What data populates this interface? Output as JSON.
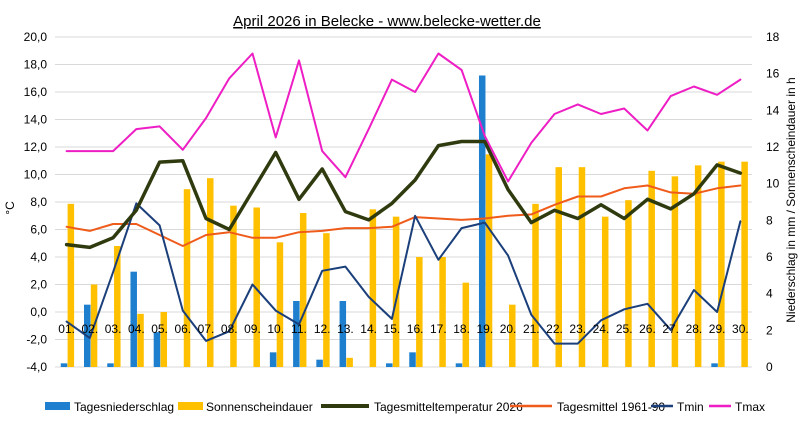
{
  "chart_data": {
    "type": "bar+line",
    "title": "April 2026 in Belecke - www.belecke-wetter.de",
    "ylabel_left": "°C",
    "ylabel_right": "Niederschlag in mm / Sonnenscheindauer in h",
    "ylim_left": [
      -4,
      20
    ],
    "ylim_right": [
      0,
      18
    ],
    "yticks_left": [
      "-4,0",
      "-2,0",
      "0,0",
      "2,0",
      "4,0",
      "6,0",
      "8,0",
      "10,0",
      "12,0",
      "14,0",
      "16,0",
      "18,0",
      "20,0"
    ],
    "yticks_right": [
      "0",
      "2",
      "4",
      "6",
      "8",
      "10",
      "12",
      "14",
      "16",
      "18"
    ],
    "categories": [
      "01.",
      "02.",
      "03.",
      "04.",
      "05.",
      "06.",
      "07.",
      "08.",
      "09.",
      "10.",
      "11.",
      "12.",
      "13.",
      "14.",
      "15.",
      "16.",
      "17.",
      "18.",
      "19.",
      "20.",
      "21.",
      "22.",
      "23.",
      "24.",
      "25.",
      "26.",
      "27.",
      "28.",
      "29.",
      "30."
    ],
    "series": [
      {
        "name": "Tagesniederschlag",
        "kind": "bar",
        "axis": "right",
        "color": "#1f7fcf",
        "values": [
          0.2,
          3.4,
          0.2,
          5.2,
          1.9,
          0,
          0,
          0,
          0,
          0.8,
          3.6,
          0.4,
          3.6,
          0,
          0.2,
          0.8,
          0,
          0.2,
          15.9,
          0,
          0,
          0,
          0,
          0,
          0,
          0,
          0,
          0,
          0.2,
          0
        ]
      },
      {
        "name": "Sonnenscheindauer",
        "kind": "bar",
        "axis": "right",
        "color": "#ffc000",
        "values": [
          8.9,
          4.5,
          6.6,
          2.9,
          3.0,
          9.7,
          10.3,
          8.8,
          8.7,
          6.8,
          8.4,
          7.3,
          0.5,
          8.6,
          8.2,
          6.0,
          6.0,
          4.6,
          11.6,
          3.4,
          8.9,
          10.9,
          10.9,
          8.2,
          9.1,
          10.7,
          10.4,
          11.0,
          11.2,
          11.2
        ]
      },
      {
        "name": "Tagesmitteltemperatur 2026",
        "kind": "line",
        "axis": "left",
        "color": "#2f3b0f",
        "values": [
          4.9,
          4.7,
          5.4,
          7.4,
          10.9,
          11.0,
          6.8,
          6.0,
          8.8,
          11.6,
          8.2,
          10.4,
          7.3,
          6.7,
          7.9,
          9.6,
          12.1,
          12.4,
          12.4,
          8.9,
          6.5,
          7.4,
          6.8,
          7.8,
          6.8,
          8.2,
          7.5,
          8.6,
          10.7,
          10.1
        ]
      },
      {
        "name": "Tagesmittel 1961-90",
        "kind": "line",
        "axis": "left",
        "color": "#ef5b1a",
        "values": [
          6.2,
          5.9,
          6.4,
          6.4,
          5.6,
          4.8,
          5.6,
          5.8,
          5.4,
          5.4,
          5.8,
          5.9,
          6.1,
          6.1,
          6.2,
          6.9,
          6.8,
          6.7,
          6.8,
          7.0,
          7.1,
          7.8,
          8.4,
          8.4,
          9.0,
          9.2,
          8.7,
          8.6,
          9.0,
          9.2
        ]
      },
      {
        "name": "Tmin",
        "kind": "line",
        "axis": "left",
        "color": "#1b3f7a",
        "values": [
          -0.7,
          -1.9,
          2.9,
          7.9,
          6.3,
          0.1,
          -2.1,
          -1.4,
          2.0,
          0.1,
          -0.9,
          3.0,
          3.3,
          1.1,
          -0.5,
          7.0,
          3.8,
          6.1,
          6.5,
          4.1,
          -0.2,
          -2.3,
          -2.3,
          -0.6,
          0.2,
          0.6,
          -1.3,
          1.6,
          0.0,
          6.6
        ]
      },
      {
        "name": "Tmax",
        "kind": "line",
        "axis": "left",
        "color": "#ee1ec5",
        "values": [
          11.7,
          11.7,
          11.7,
          13.3,
          13.5,
          11.8,
          14.1,
          17.0,
          18.8,
          12.7,
          18.3,
          11.7,
          9.8,
          13.3,
          16.9,
          16.0,
          18.8,
          17.6,
          12.8,
          9.5,
          12.3,
          14.4,
          15.1,
          14.4,
          14.8,
          13.2,
          15.7,
          16.4,
          15.8,
          16.9
        ]
      }
    ],
    "grid": "horizontal",
    "legend_position": "bottom"
  }
}
